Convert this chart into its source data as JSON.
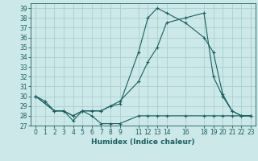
{
  "xlabel": "Humidex (Indice chaleur)",
  "bg_color": "#cce8e8",
  "grid_color": "#aacfcf",
  "line_color": "#1a6060",
  "ylim": [
    27,
    39.5
  ],
  "xlim": [
    -0.5,
    23.5
  ],
  "yticks": [
    27,
    28,
    29,
    30,
    31,
    32,
    33,
    34,
    35,
    36,
    37,
    38,
    39
  ],
  "xticks": [
    0,
    1,
    2,
    3,
    4,
    5,
    6,
    7,
    8,
    9,
    11,
    12,
    13,
    14,
    16,
    18,
    19,
    20,
    21,
    22,
    23
  ],
  "line1_x": [
    0,
    1,
    2,
    3,
    4,
    5,
    6,
    7,
    8,
    9,
    11,
    12,
    13,
    14,
    16,
    18,
    19,
    20,
    21,
    22,
    23
  ],
  "line1_y": [
    30.0,
    29.5,
    28.5,
    28.5,
    27.5,
    28.5,
    28.0,
    27.2,
    27.2,
    27.2,
    28.0,
    28.0,
    28.0,
    28.0,
    28.0,
    28.0,
    28.0,
    28.0,
    28.0,
    28.0,
    28.0
  ],
  "line2_x": [
    0,
    2,
    3,
    4,
    5,
    6,
    7,
    8,
    9,
    11,
    12,
    13,
    14,
    16,
    18,
    19,
    20,
    21,
    22,
    23
  ],
  "line2_y": [
    30.0,
    28.5,
    28.5,
    28.0,
    28.5,
    28.5,
    28.5,
    29.0,
    29.2,
    34.5,
    38.0,
    39.0,
    38.5,
    37.5,
    36.0,
    34.5,
    30.2,
    28.5,
    28.0,
    28.0
  ],
  "line3_x": [
    0,
    2,
    3,
    4,
    5,
    6,
    7,
    8,
    9,
    11,
    12,
    13,
    14,
    16,
    18,
    19,
    20,
    21,
    22,
    23
  ],
  "line3_y": [
    30.0,
    28.5,
    28.5,
    28.0,
    28.5,
    28.5,
    28.5,
    29.0,
    29.5,
    31.5,
    33.5,
    35.0,
    37.5,
    38.0,
    38.5,
    32.0,
    30.0,
    28.5,
    28.0,
    28.0
  ],
  "tick_fontsize": 5.5,
  "xlabel_fontsize": 6.5
}
